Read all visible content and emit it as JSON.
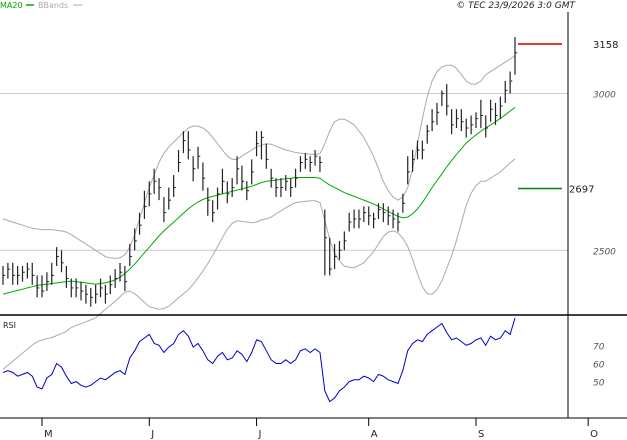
{
  "chart_data": [
    {
      "type": "ohlc",
      "legend": [
        {
          "name": "MA20",
          "color": "#00aa00"
        },
        {
          "name": "BBands",
          "color": "#aaaaaa"
        }
      ],
      "copyright": "© TEC 23/9/2026 3:0 GMT",
      "ylim": [
        2300,
        3260
      ],
      "y_ticks": [
        {
          "value": 3000,
          "label": "3000"
        },
        {
          "value": 2500,
          "label": "2500"
        }
      ],
      "grid": "horizontal",
      "colors": {
        "bars": "#222222",
        "ma": "#00aa00",
        "bands": "#aaaaaa",
        "resistance": "#cc0000",
        "support": "#008800"
      },
      "levels": [
        {
          "name": "resistance",
          "value": 3158,
          "label": "3158",
          "color": "#cc0000"
        },
        {
          "name": "support",
          "value": 2697,
          "label": "2697",
          "color": "#008800"
        }
      ],
      "x_labels": [
        {
          "label": "M",
          "index": 8
        },
        {
          "label": "J",
          "index": 30
        },
        {
          "label": "J",
          "index": 52
        },
        {
          "label": "A",
          "index": 75
        },
        {
          "label": "S",
          "index": 97
        },
        {
          "label": "O",
          "index": 120
        }
      ],
      "close": [
        2420,
        2440,
        2420,
        2420,
        2430,
        2440,
        2420,
        2380,
        2370,
        2400,
        2420,
        2480,
        2460,
        2410,
        2380,
        2380,
        2370,
        2360,
        2350,
        2360,
        2380,
        2360,
        2390,
        2410,
        2430,
        2400,
        2480,
        2530,
        2580,
        2640,
        2680,
        2720,
        2700,
        2620,
        2660,
        2700,
        2780,
        2850,
        2820,
        2760,
        2800,
        2730,
        2660,
        2620,
        2680,
        2720,
        2680,
        2700,
        2760,
        2720,
        2690,
        2750,
        2840,
        2860,
        2790,
        2730,
        2700,
        2700,
        2720,
        2700,
        2730,
        2780,
        2790,
        2780,
        2800,
        2780,
        2540,
        2440,
        2480,
        2500,
        2530,
        2590,
        2600,
        2600,
        2620,
        2610,
        2600,
        2630,
        2620,
        2610,
        2600,
        2590,
        2650,
        2750,
        2790,
        2820,
        2820,
        2880,
        2910,
        2940,
        3000,
        2960,
        2900,
        2920,
        2910,
        2890,
        2900,
        2920,
        2930,
        2890,
        2950,
        2930,
        2960,
        3010,
        3040,
        3130
      ],
      "high": [
        2450,
        2460,
        2460,
        2450,
        2450,
        2460,
        2460,
        2420,
        2420,
        2430,
        2460,
        2510,
        2500,
        2450,
        2410,
        2410,
        2400,
        2390,
        2380,
        2390,
        2410,
        2390,
        2420,
        2440,
        2460,
        2450,
        2520,
        2570,
        2620,
        2690,
        2720,
        2760,
        2730,
        2670,
        2700,
        2740,
        2820,
        2880,
        2880,
        2800,
        2830,
        2780,
        2700,
        2660,
        2700,
        2760,
        2720,
        2730,
        2800,
        2770,
        2720,
        2790,
        2880,
        2880,
        2840,
        2760,
        2730,
        2730,
        2740,
        2730,
        2760,
        2800,
        2810,
        2800,
        2820,
        2800,
        2630,
        2540,
        2520,
        2530,
        2560,
        2620,
        2630,
        2630,
        2640,
        2640,
        2620,
        2650,
        2650,
        2640,
        2630,
        2620,
        2680,
        2800,
        2820,
        2850,
        2850,
        2900,
        2950,
        2970,
        3010,
        3030,
        2950,
        2950,
        2950,
        2920,
        2930,
        2940,
        2980,
        2930,
        2980,
        2970,
        2990,
        3040,
        3070,
        3180
      ],
      "low": [
        2390,
        2410,
        2390,
        2390,
        2400,
        2410,
        2390,
        2350,
        2350,
        2370,
        2390,
        2450,
        2430,
        2380,
        2350,
        2350,
        2340,
        2330,
        2320,
        2330,
        2350,
        2330,
        2360,
        2380,
        2400,
        2370,
        2450,
        2500,
        2550,
        2600,
        2640,
        2680,
        2660,
        2590,
        2630,
        2670,
        2750,
        2810,
        2790,
        2720,
        2760,
        2690,
        2610,
        2590,
        2630,
        2680,
        2650,
        2670,
        2710,
        2690,
        2660,
        2710,
        2800,
        2790,
        2760,
        2700,
        2670,
        2670,
        2690,
        2670,
        2700,
        2750,
        2760,
        2750,
        2770,
        2750,
        2420,
        2420,
        2440,
        2470,
        2500,
        2560,
        2570,
        2570,
        2590,
        2580,
        2570,
        2600,
        2590,
        2580,
        2570,
        2560,
        2620,
        2710,
        2750,
        2790,
        2790,
        2840,
        2880,
        2900,
        2960,
        2930,
        2870,
        2890,
        2880,
        2860,
        2870,
        2890,
        2890,
        2860,
        2910,
        2900,
        2920,
        2970,
        3000,
        3060
      ],
      "ma20": [
        2360,
        2364,
        2368,
        2372,
        2376,
        2380,
        2384,
        2388,
        2390,
        2392,
        2394,
        2396,
        2398,
        2400,
        2402,
        2400,
        2398,
        2396,
        2394,
        2392,
        2394,
        2396,
        2400,
        2406,
        2414,
        2426,
        2440,
        2456,
        2474,
        2492,
        2510,
        2528,
        2546,
        2562,
        2576,
        2590,
        2604,
        2618,
        2632,
        2644,
        2654,
        2662,
        2668,
        2672,
        2676,
        2680,
        2684,
        2688,
        2692,
        2696,
        2700,
        2704,
        2710,
        2716,
        2720,
        2722,
        2724,
        2726,
        2728,
        2730,
        2732,
        2732,
        2732,
        2732,
        2732,
        2730,
        2718,
        2708,
        2700,
        2692,
        2684,
        2678,
        2672,
        2666,
        2660,
        2654,
        2648,
        2640,
        2632,
        2624,
        2616,
        2608,
        2604,
        2606,
        2616,
        2632,
        2652,
        2676,
        2700,
        2722,
        2744,
        2766,
        2786,
        2806,
        2824,
        2842,
        2856,
        2868,
        2880,
        2890,
        2900,
        2910,
        2920,
        2932,
        2944,
        2956
      ],
      "bb_upper": [
        2600,
        2595,
        2590,
        2585,
        2580,
        2575,
        2570,
        2568,
        2566,
        2566,
        2566,
        2564,
        2562,
        2558,
        2550,
        2540,
        2530,
        2520,
        2510,
        2500,
        2490,
        2480,
        2476,
        2474,
        2476,
        2486,
        2510,
        2550,
        2600,
        2650,
        2700,
        2740,
        2780,
        2810,
        2830,
        2845,
        2860,
        2875,
        2890,
        2896,
        2896,
        2890,
        2878,
        2860,
        2840,
        2820,
        2800,
        2790,
        2790,
        2800,
        2810,
        2820,
        2830,
        2835,
        2840,
        2838,
        2832,
        2826,
        2820,
        2816,
        2812,
        2810,
        2808,
        2806,
        2806,
        2808,
        2840,
        2880,
        2910,
        2918,
        2918,
        2910,
        2900,
        2880,
        2860,
        2830,
        2800,
        2760,
        2720,
        2690,
        2670,
        2660,
        2670,
        2700,
        2760,
        2840,
        2920,
        2990,
        3040,
        3070,
        3085,
        3090,
        3090,
        3080,
        3060,
        3040,
        3030,
        3030,
        3040,
        3060,
        3070,
        3080,
        3090,
        3100,
        3110,
        3120
      ],
      "bb_lower": [
        2120,
        2133,
        2146,
        2159,
        2172,
        2185,
        2198,
        2208,
        2214,
        2218,
        2222,
        2228,
        2234,
        2242,
        2254,
        2260,
        2266,
        2272,
        2278,
        2284,
        2298,
        2312,
        2324,
        2338,
        2352,
        2366,
        2370,
        2362,
        2348,
        2334,
        2320,
        2316,
        2312,
        2314,
        2322,
        2335,
        2348,
        2361,
        2374,
        2392,
        2412,
        2434,
        2458,
        2484,
        2512,
        2540,
        2568,
        2586,
        2594,
        2592,
        2590,
        2588,
        2590,
        2597,
        2600,
        2606,
        2616,
        2626,
        2636,
        2644,
        2652,
        2654,
        2656,
        2658,
        2658,
        2652,
        2596,
        2536,
        2490,
        2466,
        2450,
        2446,
        2444,
        2452,
        2460,
        2478,
        2496,
        2520,
        2544,
        2558,
        2562,
        2556,
        2538,
        2512,
        2472,
        2424,
        2384,
        2362,
        2360,
        2374,
        2403,
        2442,
        2482,
        2532,
        2588,
        2644,
        2682,
        2706,
        2720,
        2720,
        2730,
        2740,
        2750,
        2764,
        2778,
        2792
      ]
    },
    {
      "type": "line",
      "panel": "RSI",
      "title": "RSI",
      "ylim": [
        30,
        85
      ],
      "y_ticks": [
        {
          "value": 70,
          "label": "70"
        },
        {
          "value": 60,
          "label": "60"
        },
        {
          "value": 50,
          "label": "50"
        }
      ],
      "colors": {
        "line": "#0000cc"
      },
      "values": [
        55,
        56,
        55,
        53,
        54,
        55,
        53,
        47,
        46,
        52,
        54,
        60,
        58,
        53,
        49,
        50,
        48,
        47,
        48,
        50,
        52,
        51,
        53,
        55,
        56,
        54,
        63,
        67,
        72,
        74,
        76,
        71,
        70,
        66,
        69,
        71,
        76,
        78,
        75,
        69,
        71,
        67,
        62,
        60,
        64,
        66,
        62,
        63,
        67,
        65,
        61,
        66,
        73,
        72,
        67,
        62,
        60,
        60,
        62,
        60,
        62,
        67,
        68,
        66,
        68,
        66,
        45,
        39,
        41,
        45,
        47,
        50,
        51,
        51,
        53,
        52,
        50,
        54,
        53,
        51,
        50,
        49,
        56,
        67,
        71,
        73,
        72,
        76,
        78,
        80,
        82,
        77,
        73,
        74,
        72,
        70,
        71,
        73,
        74,
        70,
        75,
        73,
        74,
        78,
        76,
        85
      ]
    }
  ]
}
